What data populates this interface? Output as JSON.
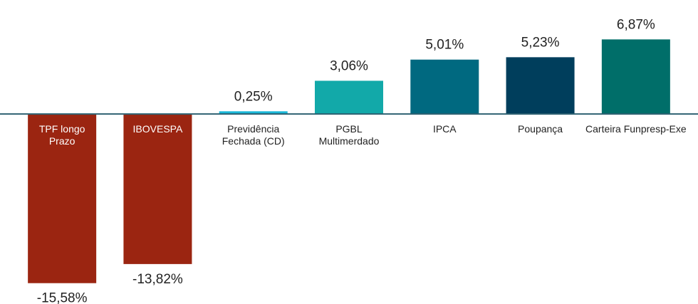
{
  "chart_data": {
    "type": "bar",
    "categories": [
      "TPF longo\nPrazo",
      "IBOVESPA",
      "Previdência\nFechada (CD)",
      "PGBL\nMultimerdado",
      "IPCA",
      "Poupança",
      "Carteira Funpresp-Exe"
    ],
    "values": [
      -15.58,
      -13.82,
      0.25,
      3.06,
      5.01,
      5.23,
      6.87
    ],
    "value_labels": [
      "-15,58%",
      "-13,82%",
      "0,25%",
      "3,06%",
      "5,01%",
      "5,23%",
      "6,87%"
    ],
    "colors": [
      "#9b2511",
      "#9b2511",
      "#1ab8d8",
      "#12a9a9",
      "#006980",
      "#003e5c",
      "#006e69"
    ],
    "ylim": [
      -17.5,
      10.5
    ]
  }
}
